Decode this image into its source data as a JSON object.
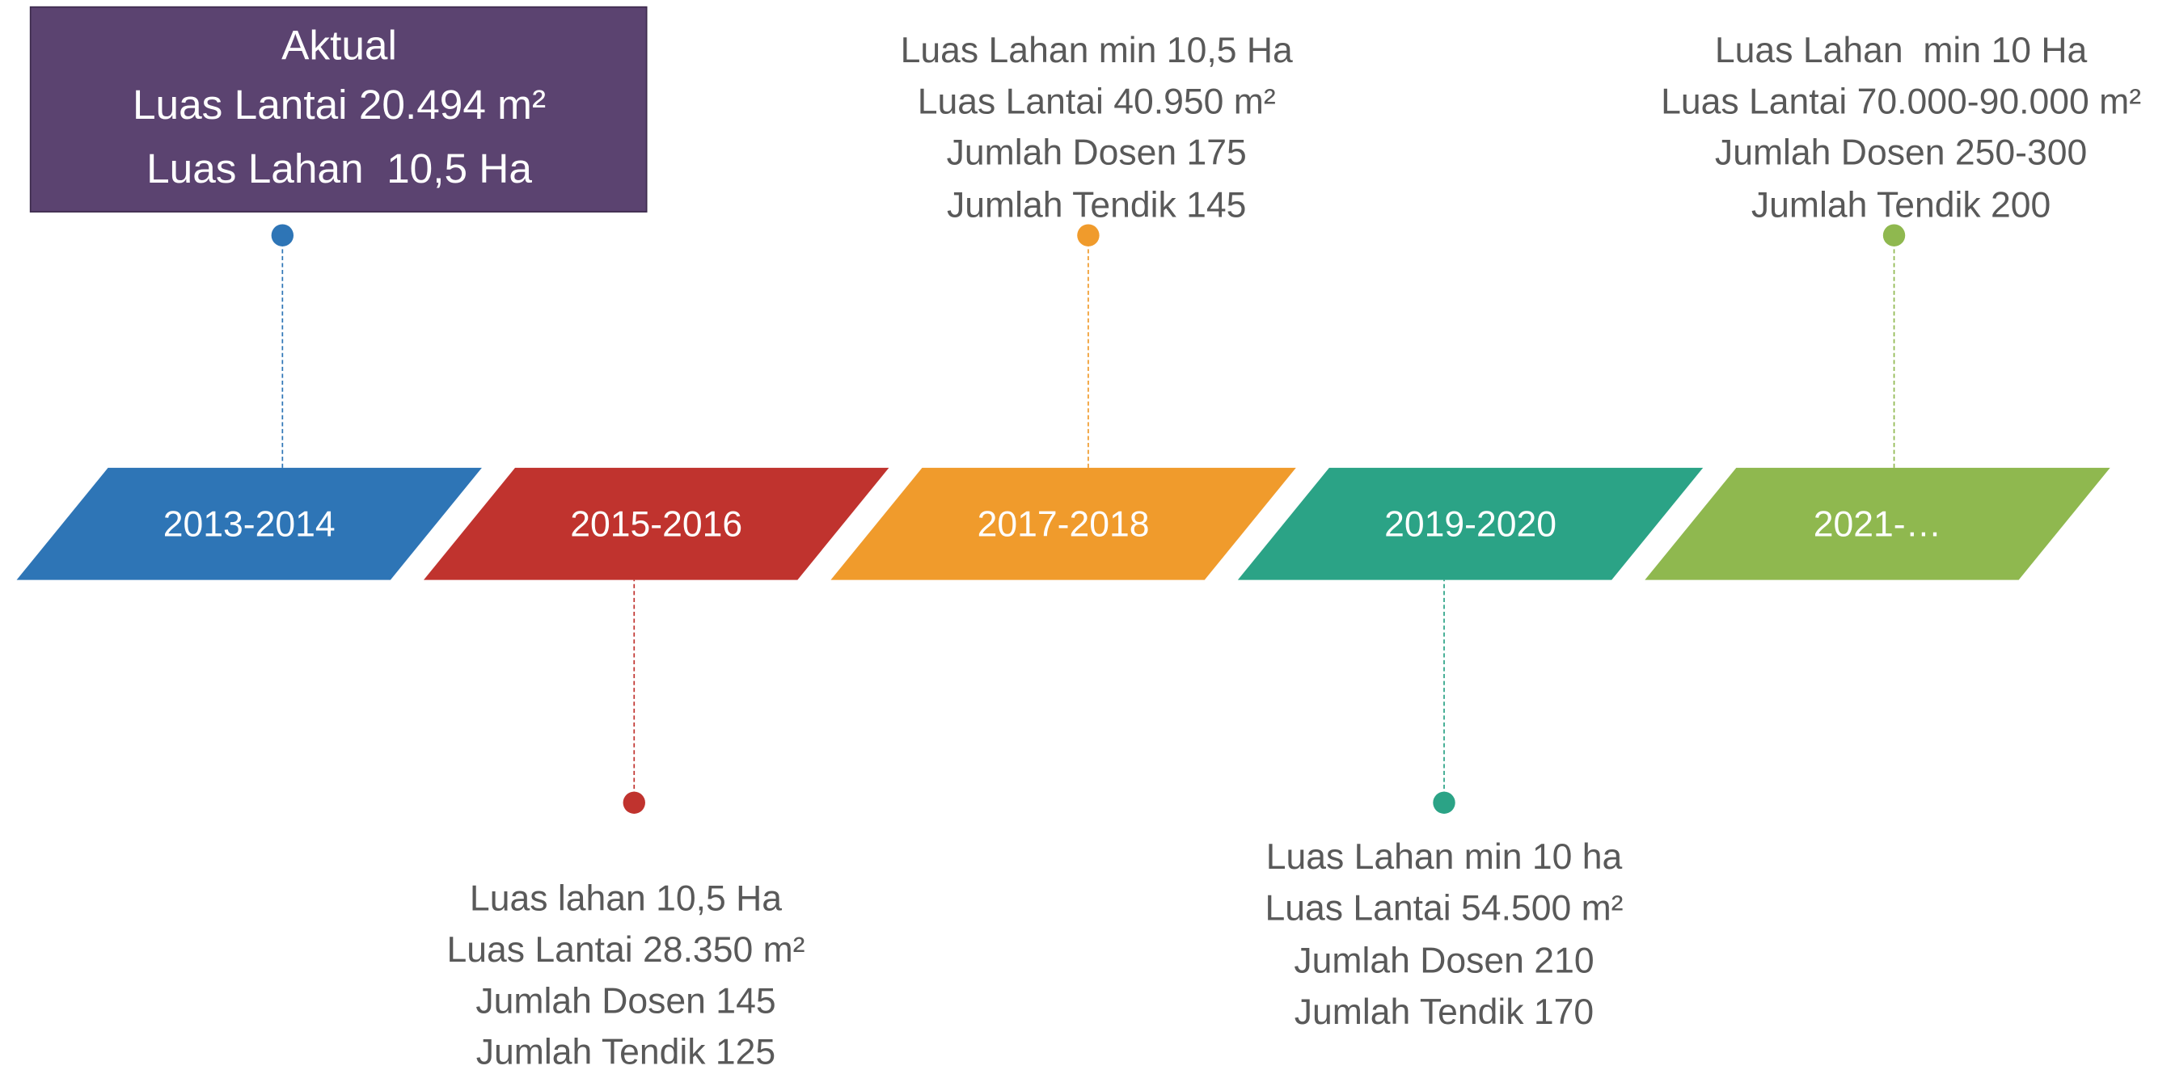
{
  "timeline": {
    "periods": [
      {
        "label": "2013-2014",
        "color": "#2e75b6",
        "notes": [
          "Aktual",
          "Luas Lantai 20.494 m²",
          "Luas Lahan  10,5 Ha"
        ]
      },
      {
        "label": "2015-2016",
        "color": "#c0332e",
        "notes": [
          "Luas lahan 10,5 Ha",
          "Luas Lantai 28.350 m²",
          "Jumlah Dosen 145",
          "Jumlah Tendik 125"
        ]
      },
      {
        "label": "2017-2018",
        "color": "#f09b2c",
        "notes": [
          "Luas Lahan min 10,5 Ha",
          "Luas Lantai 40.950 m²",
          "Jumlah Dosen 175",
          "Jumlah Tendik 145"
        ]
      },
      {
        "label": "2019-2020",
        "color": "#2ba386",
        "notes": [
          "Luas Lahan min 10 ha",
          "Luas Lantai 54.500 m²",
          "Jumlah Dosen 210",
          "Jumlah Tendik 170"
        ]
      },
      {
        "label": "2021-…",
        "color": "#8fb84f",
        "notes": [
          "Luas Lahan  min 10 Ha",
          "Luas Lantai 70.000-90.000 m²",
          "Jumlah Dosen 250-300",
          "Jumlah Tendik 200"
        ]
      }
    ]
  }
}
